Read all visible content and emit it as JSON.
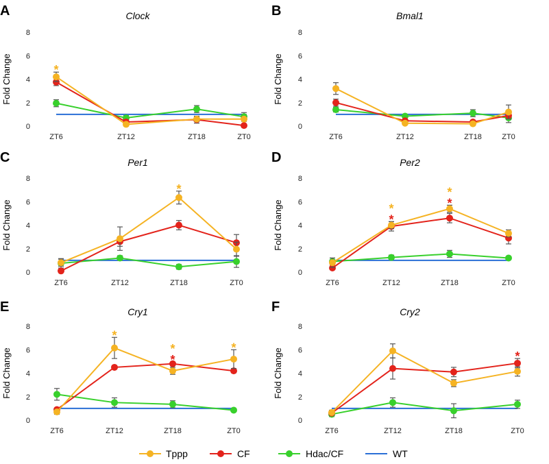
{
  "legend": [
    {
      "name": "Tppp",
      "color": "#F5B323"
    },
    {
      "name": "CF",
      "color": "#E3231B"
    },
    {
      "name": "Hdac/CF",
      "color": "#38D02C"
    },
    {
      "name": "WT",
      "color": "#2A6FD6"
    }
  ],
  "chart_data": [
    {
      "letter": "A",
      "type": "line",
      "title": "Clock",
      "categories": [
        "ZT6",
        "ZT12",
        "ZT18",
        "ZT0"
      ],
      "xlabel": "",
      "ylabel": "Fold Change",
      "ylim": [
        0,
        8
      ],
      "yticks": [
        "0",
        "2",
        "4",
        "6",
        "8"
      ],
      "series": [
        {
          "name": "Tppp",
          "values": [
            4.2,
            0.15,
            0.6,
            0.6
          ],
          "errors": [
            0.4,
            0.15,
            0.2,
            0.2
          ]
        },
        {
          "name": "CF",
          "values": [
            3.75,
            0.35,
            0.55,
            0.05
          ],
          "errors": [
            0.3,
            0.2,
            0.3,
            0.1
          ]
        },
        {
          "name": "Hdac/CF",
          "values": [
            1.95,
            0.7,
            1.45,
            0.8
          ],
          "errors": [
            0.3,
            0.2,
            0.3,
            0.2
          ]
        },
        {
          "name": "WT",
          "values": [
            1,
            1,
            1,
            1
          ],
          "errors": [
            0,
            0,
            0,
            0.15
          ]
        }
      ],
      "significance": [
        {
          "category": "ZT6",
          "marks": [
            "Tppp"
          ]
        }
      ]
    },
    {
      "letter": "B",
      "type": "line",
      "title": "Bmal1",
      "categories": [
        "ZT6",
        "ZT12",
        "ZT18",
        "ZT0"
      ],
      "xlabel": "",
      "ylabel": "Fold Change",
      "ylim": [
        0,
        8
      ],
      "yticks": [
        "0",
        "2",
        "4",
        "6",
        "8"
      ],
      "series": [
        {
          "name": "Tppp",
          "values": [
            3.2,
            0.25,
            0.2,
            1.2
          ],
          "errors": [
            0.5,
            0.1,
            0.1,
            0.6
          ]
        },
        {
          "name": "CF",
          "values": [
            2.0,
            0.45,
            0.35,
            0.9
          ],
          "errors": [
            0.3,
            0.15,
            0.15,
            0.2
          ]
        },
        {
          "name": "Hdac/CF",
          "values": [
            1.4,
            0.85,
            1.1,
            0.7
          ],
          "errors": [
            0.2,
            0.15,
            0.3,
            0.4
          ]
        },
        {
          "name": "WT",
          "values": [
            1,
            1,
            1,
            1
          ],
          "errors": [
            0,
            0,
            0,
            0
          ]
        }
      ],
      "significance": []
    },
    {
      "letter": "C",
      "type": "line",
      "title": "Per1",
      "categories": [
        "ZT6",
        "ZT12",
        "ZT18",
        "ZT0"
      ],
      "xlabel": "",
      "ylabel": "Fold Change",
      "ylim": [
        0,
        8
      ],
      "yticks": [
        "0",
        "2",
        "4",
        "6",
        "8"
      ],
      "series": [
        {
          "name": "Tppp",
          "values": [
            0.8,
            2.85,
            6.35,
            1.95
          ],
          "errors": [
            0.3,
            1.0,
            0.55,
            0.6
          ]
        },
        {
          "name": "CF",
          "values": [
            0.1,
            2.6,
            4.0,
            2.5
          ],
          "errors": [
            0.1,
            0.4,
            0.4,
            0.7
          ]
        },
        {
          "name": "Hdac/CF",
          "values": [
            0.75,
            1.2,
            0.45,
            0.9
          ],
          "errors": [
            0.4,
            0.2,
            0.2,
            0.5
          ]
        },
        {
          "name": "WT",
          "values": [
            1,
            1,
            1,
            1
          ],
          "errors": [
            0,
            0,
            0,
            0
          ]
        }
      ],
      "significance": [
        {
          "category": "ZT18",
          "marks": [
            "Tppp"
          ]
        }
      ]
    },
    {
      "letter": "D",
      "type": "line",
      "title": "Per2",
      "categories": [
        "ZT6",
        "ZT12",
        "ZT18",
        "ZT0"
      ],
      "xlabel": "",
      "ylabel": "Fold Change",
      "ylim": [
        0,
        8
      ],
      "yticks": [
        "0",
        "2",
        "4",
        "6",
        "8"
      ],
      "series": [
        {
          "name": "Tppp",
          "values": [
            0.8,
            4.0,
            5.4,
            3.3
          ],
          "errors": [
            0.4,
            0.3,
            0.3,
            0.3
          ]
        },
        {
          "name": "CF",
          "values": [
            0.35,
            3.9,
            4.6,
            2.9
          ],
          "errors": [
            0.1,
            0.4,
            0.4,
            0.5
          ]
        },
        {
          "name": "Hdac/CF",
          "values": [
            0.9,
            1.25,
            1.55,
            1.2
          ],
          "errors": [
            0.3,
            0.2,
            0.3,
            0.1
          ]
        },
        {
          "name": "WT",
          "values": [
            1,
            1,
            1,
            1
          ],
          "errors": [
            0,
            0,
            0,
            0
          ]
        }
      ],
      "significance": [
        {
          "category": "ZT12",
          "marks": [
            "Tppp",
            "CF"
          ]
        },
        {
          "category": "ZT18",
          "marks": [
            "Tppp",
            "CF"
          ]
        }
      ]
    },
    {
      "letter": "E",
      "type": "line",
      "title": "Cry1",
      "categories": [
        "ZT6",
        "ZT12",
        "ZT18",
        "ZT0"
      ],
      "xlabel": "",
      "ylabel": "Fold Change",
      "ylim": [
        0,
        8
      ],
      "yticks": [
        "0",
        "2",
        "4",
        "6",
        "8"
      ],
      "series": [
        {
          "name": "Tppp",
          "values": [
            0.7,
            6.15,
            4.2,
            5.2
          ],
          "errors": [
            0.2,
            0.9,
            0.3,
            0.8
          ]
        },
        {
          "name": "CF",
          "values": [
            0.9,
            4.5,
            4.8,
            4.2
          ],
          "errors": [
            0.1,
            0.15,
            0.15,
            0.15
          ]
        },
        {
          "name": "Hdac/CF",
          "values": [
            2.2,
            1.5,
            1.35,
            0.85
          ],
          "errors": [
            0.5,
            0.4,
            0.3,
            0.1
          ]
        },
        {
          "name": "WT",
          "values": [
            1,
            1,
            1,
            1
          ],
          "errors": [
            0,
            0,
            0,
            0
          ]
        }
      ],
      "significance": [
        {
          "category": "ZT12",
          "marks": [
            "Tppp"
          ]
        },
        {
          "category": "ZT18",
          "marks": [
            "Tppp",
            "CF"
          ]
        },
        {
          "category": "ZT0",
          "marks": [
            "Tppp"
          ]
        }
      ]
    },
    {
      "letter": "F",
      "type": "line",
      "title": "Cry2",
      "categories": [
        "ZT6",
        "ZT12",
        "ZT18",
        "ZT0"
      ],
      "xlabel": "",
      "ylabel": "Fold Change",
      "ylim": [
        0,
        8
      ],
      "yticks": [
        "0",
        "2",
        "4",
        "6",
        "8"
      ],
      "series": [
        {
          "name": "Tppp",
          "values": [
            0.65,
            5.9,
            3.15,
            4.15
          ],
          "errors": [
            0.2,
            0.6,
            0.3,
            0.4
          ]
        },
        {
          "name": "CF",
          "values": [
            0.6,
            4.4,
            4.1,
            4.85
          ],
          "errors": [
            0.2,
            0.9,
            0.4,
            0.4
          ]
        },
        {
          "name": "Hdac/CF",
          "values": [
            0.5,
            1.5,
            0.8,
            1.35
          ],
          "errors": [
            0.2,
            0.4,
            0.6,
            0.35
          ]
        },
        {
          "name": "WT",
          "values": [
            1,
            1,
            1,
            1
          ],
          "errors": [
            0,
            0,
            0,
            0
          ]
        }
      ],
      "significance": [
        {
          "category": "ZT0",
          "marks": [
            "CF"
          ]
        }
      ]
    }
  ]
}
